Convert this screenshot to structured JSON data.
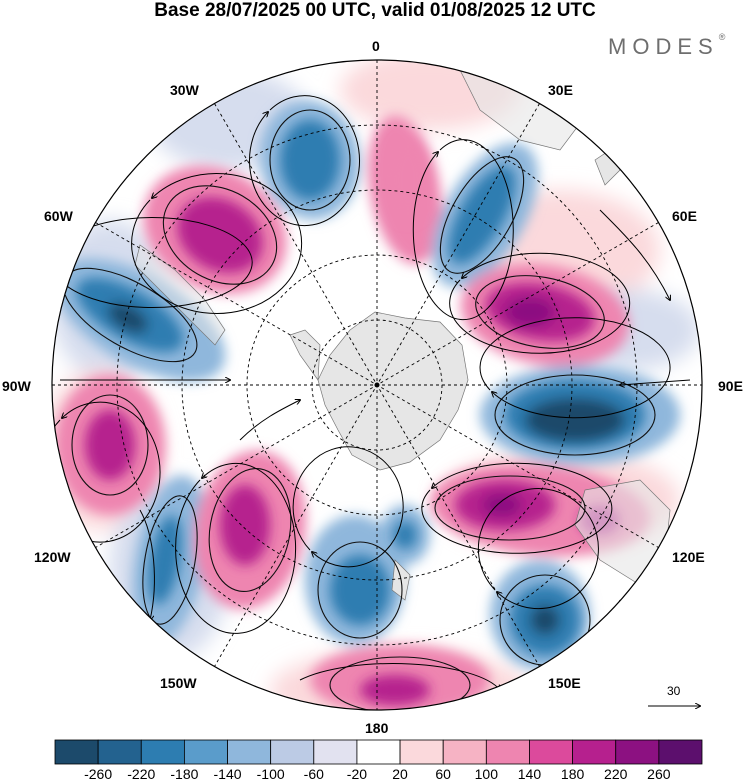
{
  "title": "Base 28/07/2025 00 UTC, valid 01/08/2025 12 UTC",
  "brand": {
    "name": "MODES",
    "mark": "®"
  },
  "longitude_labels": {
    "top": "0",
    "bottom": "180",
    "right": "90E",
    "left": "90W",
    "e30": "30E",
    "e60": "60E",
    "e120": "120E",
    "e150": "150E",
    "w30": "30W",
    "w60": "60W",
    "w120": "120W",
    "w150": "150W"
  },
  "reference_vector": {
    "label": "30"
  },
  "colorbar": {
    "labels": [
      "-260",
      "-220",
      "-180",
      "-140",
      "-100",
      "-60",
      "-20",
      "20",
      "60",
      "100",
      "140",
      "180",
      "220",
      "260"
    ],
    "colors": [
      "#1c4a6b",
      "#23628f",
      "#2d7db1",
      "#5a9ccb",
      "#8fb7dc",
      "#bccbe5",
      "#e2e2f0",
      "#ffffff",
      "#fbd9dc",
      "#f6b3c4",
      "#ee85b0",
      "#dc4a9c",
      "#b6208e",
      "#8c1181",
      "#5c0f6d"
    ]
  },
  "anomaly_colors": {
    "strong_neg": "#1c4a6b",
    "neg": "#2d7db1",
    "weak_neg": "#8fb7dc",
    "faint_neg": "#d6ddee",
    "faint_pos": "#fbd9dc",
    "pos": "#ee85b0",
    "strong_pos": "#b6208e",
    "max_pos": "#8c1181",
    "land": "#e6e6e6"
  }
}
